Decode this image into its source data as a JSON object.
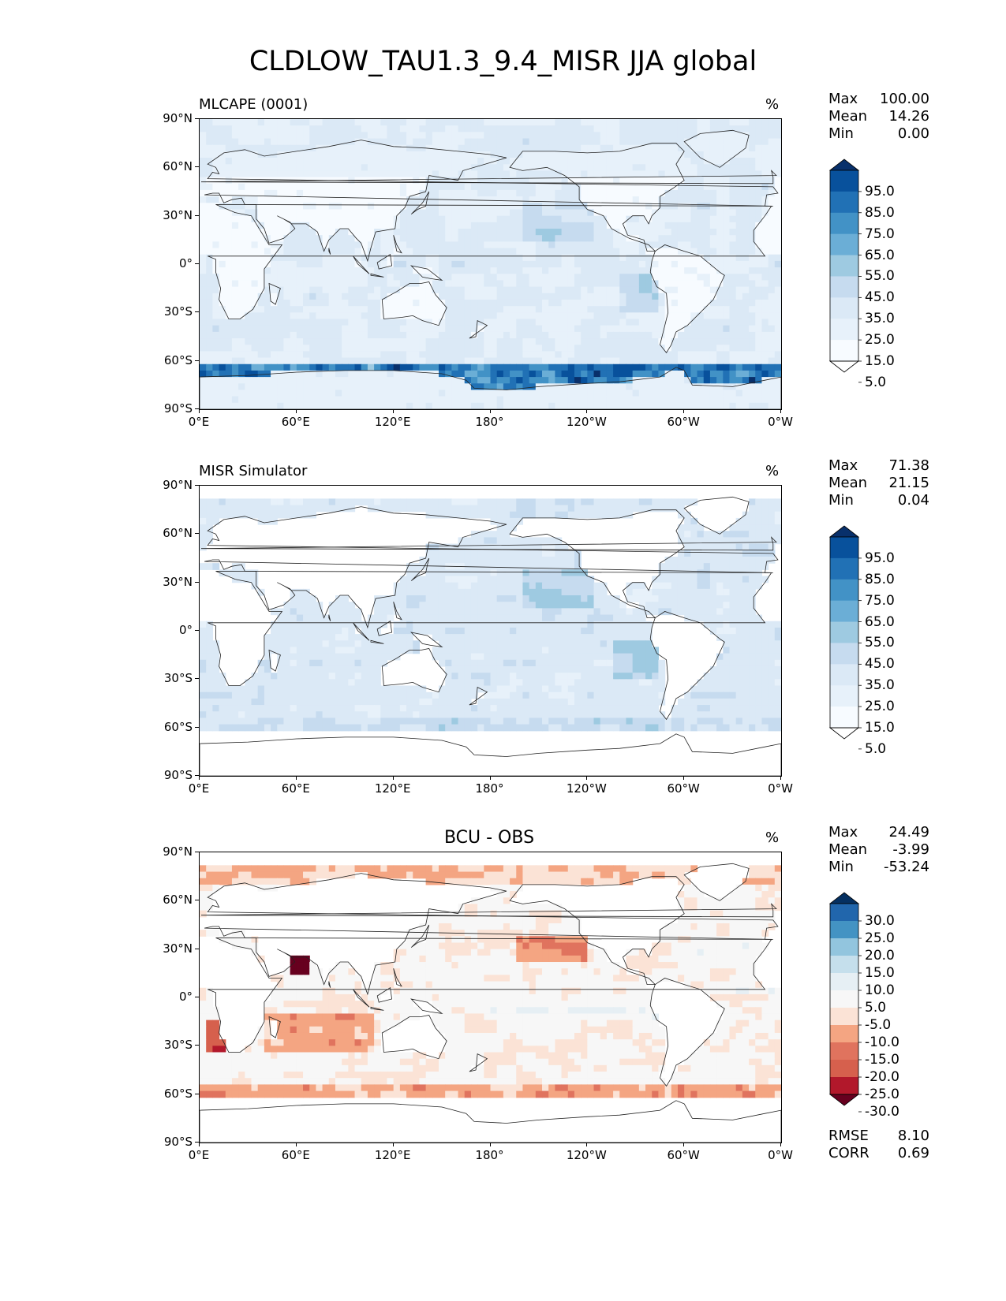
{
  "figure_title": "CLDLOW_TAU1.3_9.4_MISR JJA global",
  "axis_ticks": {
    "lat": [
      "90°N",
      "60°N",
      "30°N",
      "0°",
      "30°S",
      "60°S",
      "90°S"
    ],
    "lon": [
      "0°E",
      "60°E",
      "120°E",
      "180°",
      "120°W",
      "60°W",
      "0°W"
    ]
  },
  "panels": [
    {
      "title": "MLCAPE (0001)",
      "units": "%",
      "stats": {
        "max_label": "Max",
        "max": "100.00",
        "mean_label": "Mean",
        "mean": "14.26",
        "min_label": "Min",
        "min": "0.00"
      },
      "colorbar": {
        "labels": [
          "95.0",
          "85.0",
          "75.0",
          "65.0",
          "55.0",
          "45.0",
          "35.0",
          "25.0",
          "15.0",
          "5.0"
        ],
        "colors": [
          "#08306b",
          "#08519c",
          "#2171b5",
          "#4292c6",
          "#6baed6",
          "#9ecae1",
          "#c6dbef",
          "#dbe9f6",
          "#e7f1fa",
          "#f7fbff",
          "#ffffff"
        ]
      }
    },
    {
      "title": "MISR Simulator",
      "units": "%",
      "stats": {
        "max_label": "Max",
        "max": "71.38",
        "mean_label": "Mean",
        "mean": "21.15",
        "min_label": "Min",
        "min": "0.04"
      },
      "colorbar": {
        "labels": [
          "95.0",
          "85.0",
          "75.0",
          "65.0",
          "55.0",
          "45.0",
          "35.0",
          "25.0",
          "15.0",
          "5.0"
        ],
        "colors": [
          "#08306b",
          "#08519c",
          "#2171b5",
          "#4292c6",
          "#6baed6",
          "#9ecae1",
          "#c6dbef",
          "#dbe9f6",
          "#e7f1fa",
          "#f7fbff",
          "#ffffff"
        ]
      }
    },
    {
      "title": "BCU - OBS",
      "units": "%",
      "stats": {
        "max_label": "Max",
        "max": "24.49",
        "mean_label": "Mean",
        "mean": "-3.99",
        "min_label": "Min",
        "min": "-53.24"
      },
      "colorbar": {
        "labels": [
          "30.0",
          "25.0",
          "20.0",
          "15.0",
          "10.0",
          "5.0",
          "-5.0",
          "-10.0",
          "-15.0",
          "-20.0",
          "-25.0",
          "-30.0"
        ],
        "colors": [
          "#053061",
          "#2166ac",
          "#4393c3",
          "#92c5de",
          "#c5dfec",
          "#e6eff4",
          "#f7f7f7",
          "#fbe3d6",
          "#f4a582",
          "#e0735e",
          "#d6604d",
          "#b2182b",
          "#67001f"
        ]
      },
      "metrics": {
        "rmse_label": "RMSE",
        "rmse": "8.10",
        "corr_label": "CORR",
        "corr": "0.69"
      }
    }
  ]
}
